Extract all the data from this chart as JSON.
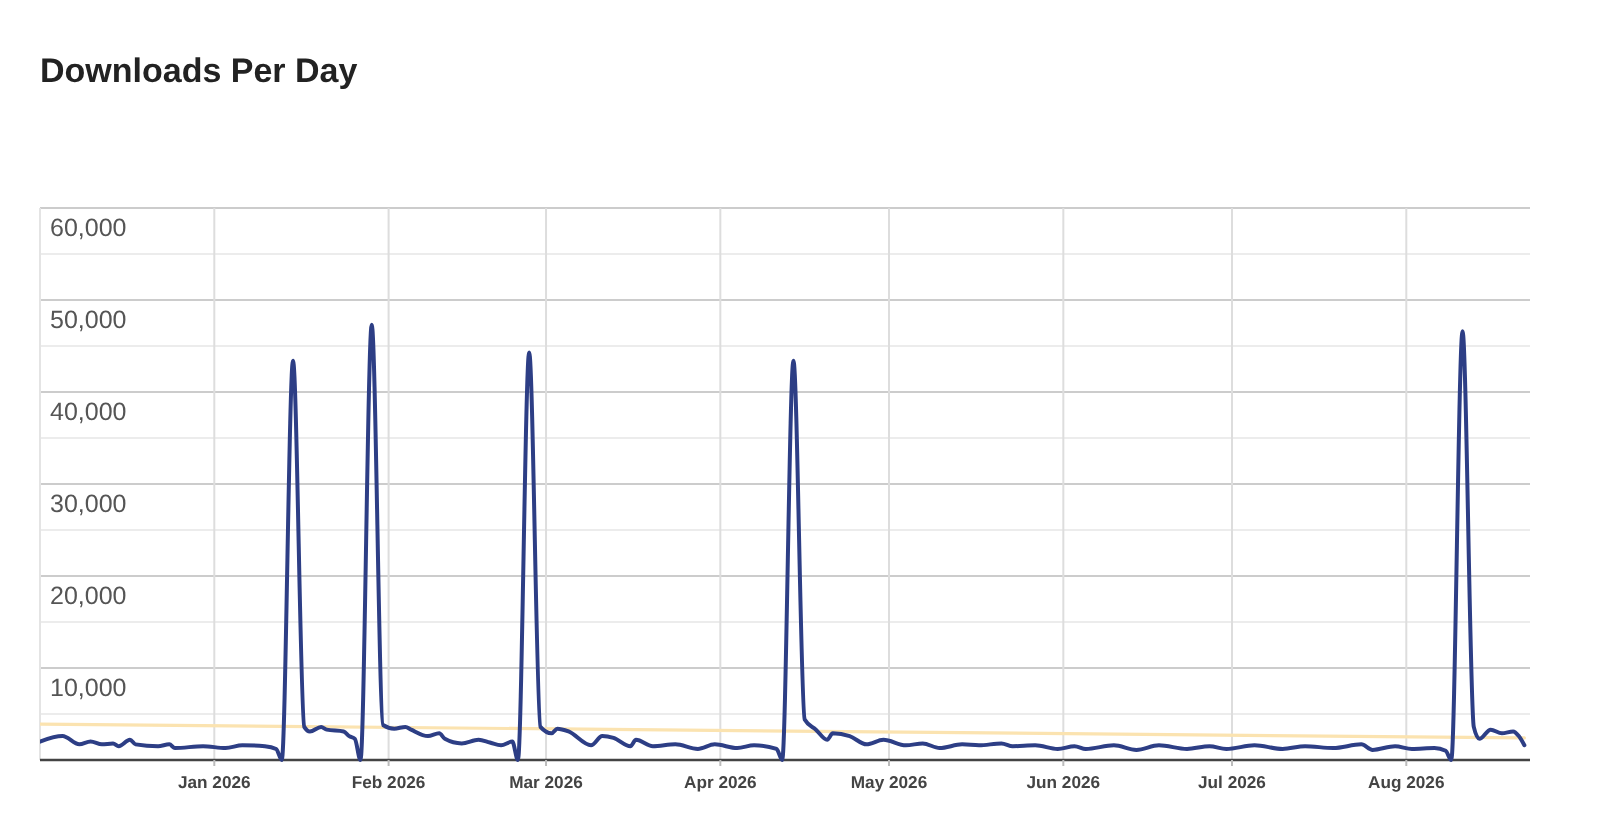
{
  "chart_data": {
    "type": "line",
    "title": "Downloads Per Day",
    "series": [
      {
        "color": "#2d3e85",
        "x": [
          "2025-12-01",
          "2025-12-05",
          "2025-12-08",
          "2025-12-10",
          "2025-12-12",
          "2025-12-14",
          "2025-12-15",
          "2025-12-17",
          "2025-12-18",
          "2025-12-22",
          "2025-12-24",
          "2025-12-25",
          "2025-12-30",
          "2026-01-03",
          "2026-01-06",
          "2026-01-10",
          "2026-01-12",
          "2026-01-13",
          "2026-01-15",
          "2026-01-17",
          "2026-01-18",
          "2026-01-20",
          "2026-01-21",
          "2026-01-24",
          "2026-01-25",
          "2026-01-26",
          "2026-01-27",
          "2026-01-29",
          "2026-01-31",
          "2026-02-02",
          "2026-02-04",
          "2026-02-05",
          "2026-02-08",
          "2026-02-10",
          "2026-02-11",
          "2026-02-14",
          "2026-02-17",
          "2026-02-19",
          "2026-02-21",
          "2026-02-23",
          "2026-02-24",
          "2026-02-26",
          "2026-02-28",
          "2026-03-02",
          "2026-03-03",
          "2026-03-05",
          "2026-03-09",
          "2026-03-11",
          "2026-03-13",
          "2026-03-16",
          "2026-03-17",
          "2026-03-20",
          "2026-03-24",
          "2026-03-28",
          "2026-03-31",
          "2026-04-04",
          "2026-04-07",
          "2026-04-11",
          "2026-04-12",
          "2026-04-14",
          "2026-04-16",
          "2026-04-18",
          "2026-04-20",
          "2026-04-21",
          "2026-04-24",
          "2026-04-27",
          "2026-04-30",
          "2026-05-04",
          "2026-05-07",
          "2026-05-10",
          "2026-05-14",
          "2026-05-17",
          "2026-05-21",
          "2026-05-23",
          "2026-05-27",
          "2026-05-31",
          "2026-06-03",
          "2026-06-05",
          "2026-06-10",
          "2026-06-14",
          "2026-06-18",
          "2026-06-23",
          "2026-06-27",
          "2026-06-30",
          "2026-07-05",
          "2026-07-10",
          "2026-07-14",
          "2026-07-19",
          "2026-07-24",
          "2026-07-26",
          "2026-07-30",
          "2026-08-02",
          "2026-08-06",
          "2026-08-08",
          "2026-08-09",
          "2026-08-11",
          "2026-08-13",
          "2026-08-14",
          "2026-08-16",
          "2026-08-18",
          "2026-08-20",
          "2026-08-21",
          "2026-08-22"
        ],
        "values": [
          2000,
          2600,
          1700,
          2000,
          1700,
          1800,
          1500,
          2200,
          1700,
          1500,
          1700,
          1300,
          1500,
          1300,
          1600,
          1500,
          1200,
          0,
          43400,
          3600,
          3100,
          3600,
          3300,
          3100,
          2600,
          2300,
          0,
          47300,
          3800,
          3400,
          3600,
          3300,
          2600,
          2900,
          2300,
          1800,
          2200,
          1900,
          1600,
          2000,
          0,
          44300,
          3600,
          2900,
          3400,
          3100,
          1600,
          2600,
          2400,
          1500,
          2200,
          1500,
          1700,
          1200,
          1700,
          1300,
          1600,
          1200,
          0,
          43400,
          4400,
          3300,
          2200,
          2900,
          2600,
          1700,
          2200,
          1600,
          1800,
          1300,
          1700,
          1600,
          1800,
          1500,
          1600,
          1200,
          1500,
          1200,
          1600,
          1100,
          1600,
          1200,
          1500,
          1200,
          1600,
          1200,
          1500,
          1300,
          1700,
          1100,
          1500,
          1200,
          1300,
          1000,
          0,
          46600,
          3600,
          2300,
          3300,
          2900,
          3100,
          2600,
          1600
        ]
      },
      {
        "color": "#fbe3b0",
        "x": [
          "2025-12-01",
          "2026-08-22"
        ],
        "values": [
          3900,
          2400
        ]
      }
    ],
    "xlim": [
      "2025-12-01",
      "2026-08-23"
    ],
    "xticks": [
      {
        "value": "2026-01-01",
        "label": "Jan 2026"
      },
      {
        "value": "2026-02-01",
        "label": "Feb 2026"
      },
      {
        "value": "2026-03-01",
        "label": "Mar 2026"
      },
      {
        "value": "2026-04-01",
        "label": "Apr 2026"
      },
      {
        "value": "2026-05-01",
        "label": "May 2026"
      },
      {
        "value": "2026-06-01",
        "label": "Jun 2026"
      },
      {
        "value": "2026-07-01",
        "label": "Jul 2026"
      },
      {
        "value": "2026-08-01",
        "label": "Aug 2026"
      }
    ],
    "ylim": [
      0,
      60000
    ],
    "yticks": [
      {
        "value": 0,
        "label": null
      },
      {
        "value": 5000,
        "label": null
      },
      {
        "value": 10000,
        "label": "10,000"
      },
      {
        "value": 15000,
        "label": null
      },
      {
        "value": 20000,
        "label": "20,000"
      },
      {
        "value": 25000,
        "label": null
      },
      {
        "value": 30000,
        "label": "30,000"
      },
      {
        "value": 35000,
        "label": null
      },
      {
        "value": 40000,
        "label": "40,000"
      },
      {
        "value": 45000,
        "label": null
      },
      {
        "value": 50000,
        "label": "50,000"
      },
      {
        "value": 55000,
        "label": null
      },
      {
        "value": 60000,
        "label": "60,000"
      }
    ],
    "grid": true
  }
}
